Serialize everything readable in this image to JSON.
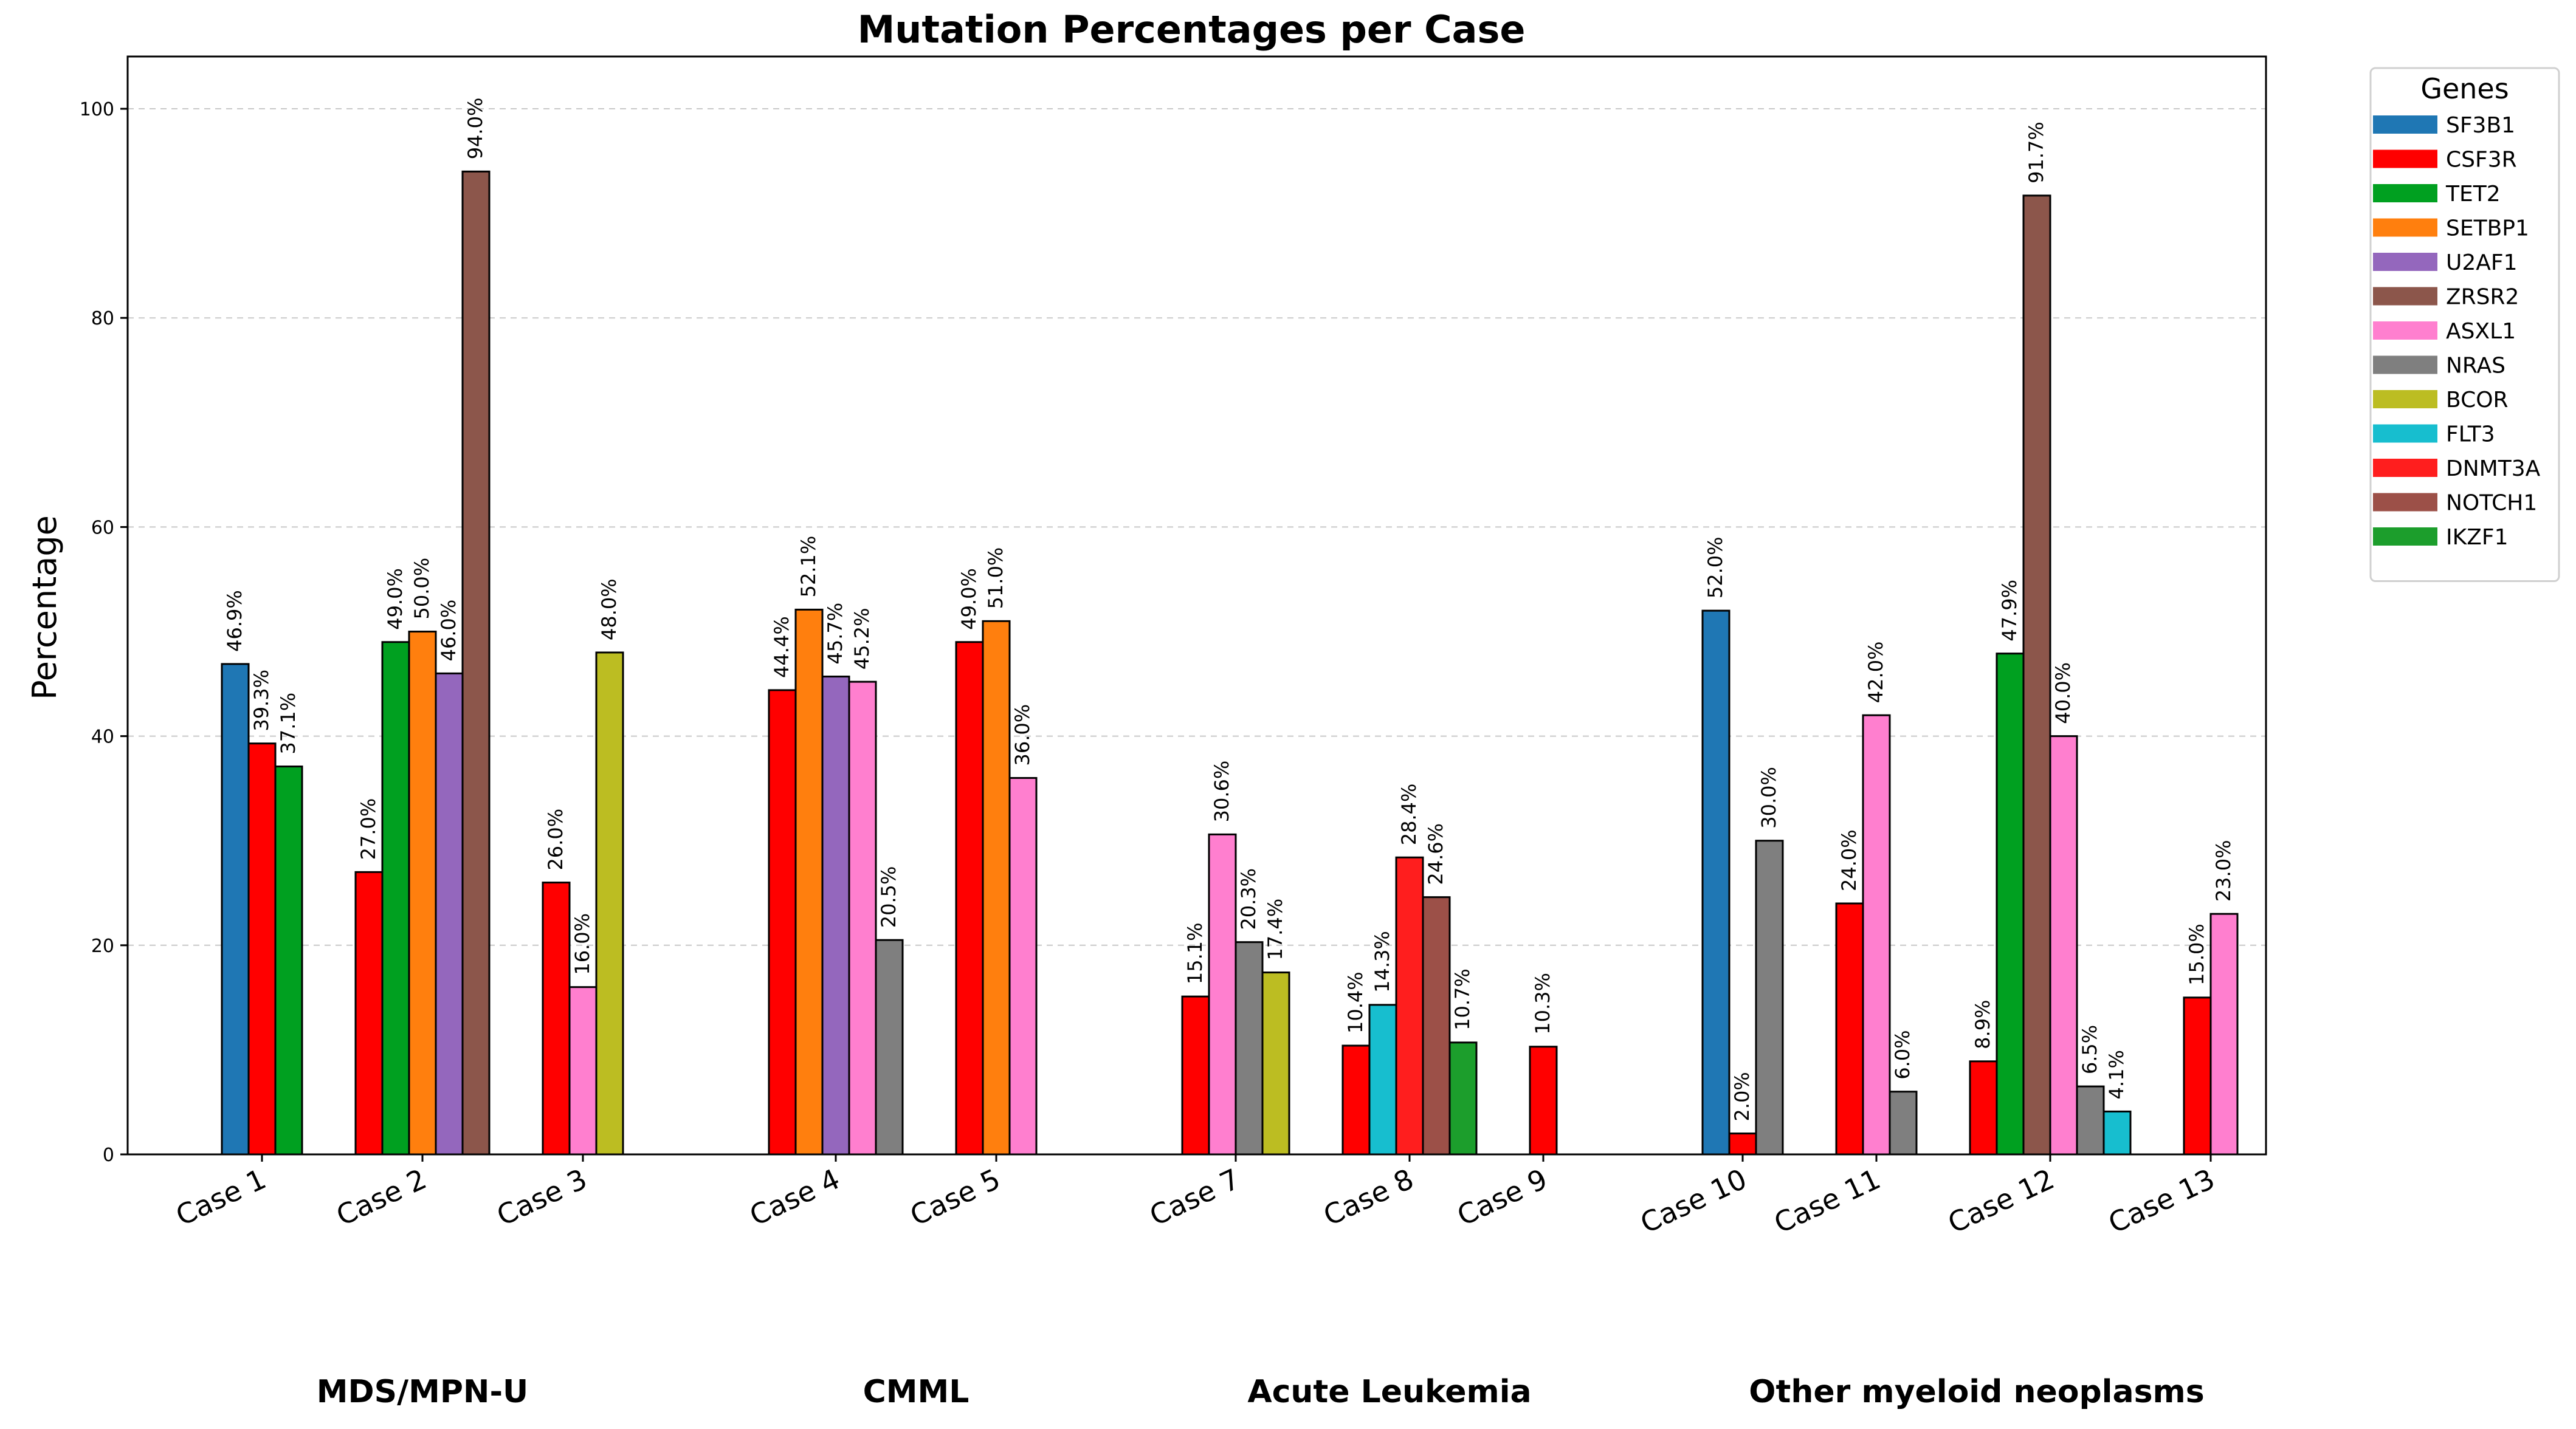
{
  "chart_data": {
    "type": "bar",
    "title": "Mutation Percentages per Case",
    "xlabel": "",
    "ylabel": "Percentage",
    "ylim": [
      0,
      105
    ],
    "yticks": [
      0,
      20,
      40,
      60,
      80,
      100
    ],
    "grid": "horizontal-dashed",
    "legend": {
      "title": "Genes",
      "placement": "outside-right",
      "entries": [
        {
          "name": "SF3B1",
          "color": "#1f77b4"
        },
        {
          "name": "CSF3R",
          "color": "#ff0000"
        },
        {
          "name": "TET2",
          "color": "#00a020"
        },
        {
          "name": "SETBP1",
          "color": "#ff7f0e"
        },
        {
          "name": "U2AF1",
          "color": "#9467bd"
        },
        {
          "name": "ZRSR2",
          "color": "#8c564b"
        },
        {
          "name": "ASXL1",
          "color": "#ff7fcf"
        },
        {
          "name": "NRAS",
          "color": "#7f7f7f"
        },
        {
          "name": "BCOR",
          "color": "#bcbd22"
        },
        {
          "name": "FLT3",
          "color": "#17becf"
        },
        {
          "name": "DNMT3A",
          "color": "#ff1e1e"
        },
        {
          "name": "NOTCH1",
          "color": "#9c5048"
        },
        {
          "name": "IKZF1",
          "color": "#1c9e2c"
        }
      ]
    },
    "groups": [
      {
        "name": "MDS/MPN-U",
        "cases": [
          {
            "label": "Case 1",
            "bars": [
              {
                "gene": "SF3B1",
                "value": 46.9,
                "label": "46.9%"
              },
              {
                "gene": "CSF3R",
                "value": 39.3,
                "label": "39.3%"
              },
              {
                "gene": "TET2",
                "value": 37.1,
                "label": "37.1%"
              }
            ]
          },
          {
            "label": "Case 2",
            "bars": [
              {
                "gene": "CSF3R",
                "value": 27.0,
                "label": "27.0%"
              },
              {
                "gene": "TET2",
                "value": 49.0,
                "label": "49.0%"
              },
              {
                "gene": "SETBP1",
                "value": 50.0,
                "label": "50.0%"
              },
              {
                "gene": "U2AF1",
                "value": 46.0,
                "label": "46.0%"
              },
              {
                "gene": "ZRSR2",
                "value": 94.0,
                "label": "94.0%"
              }
            ]
          },
          {
            "label": "Case 3",
            "bars": [
              {
                "gene": "CSF3R",
                "value": 26.0,
                "label": "26.0%"
              },
              {
                "gene": "ASXL1",
                "value": 16.0,
                "label": "16.0%"
              },
              {
                "gene": "BCOR",
                "value": 48.0,
                "label": "48.0%"
              }
            ]
          }
        ]
      },
      {
        "name": "CMML",
        "cases": [
          {
            "label": "Case 4",
            "bars": [
              {
                "gene": "CSF3R",
                "value": 44.4,
                "label": "44.4%"
              },
              {
                "gene": "SETBP1",
                "value": 52.1,
                "label": "52.1%"
              },
              {
                "gene": "U2AF1",
                "value": 45.7,
                "label": "45.7%"
              },
              {
                "gene": "ASXL1",
                "value": 45.2,
                "label": "45.2%"
              },
              {
                "gene": "NRAS",
                "value": 20.5,
                "label": "20.5%"
              }
            ]
          },
          {
            "label": "Case 5",
            "bars": [
              {
                "gene": "CSF3R",
                "value": 49.0,
                "label": "49.0%"
              },
              {
                "gene": "SETBP1",
                "value": 51.0,
                "label": "51.0%"
              },
              {
                "gene": "ASXL1",
                "value": 36.0,
                "label": "36.0%"
              }
            ]
          }
        ]
      },
      {
        "name": "Acute Leukemia",
        "cases": [
          {
            "label": "Case 7",
            "bars": [
              {
                "gene": "CSF3R",
                "value": 15.1,
                "label": "15.1%"
              },
              {
                "gene": "ASXL1",
                "value": 30.6,
                "label": "30.6%"
              },
              {
                "gene": "NRAS",
                "value": 20.3,
                "label": "20.3%"
              },
              {
                "gene": "BCOR",
                "value": 17.4,
                "label": "17.4%"
              }
            ]
          },
          {
            "label": "Case 8",
            "bars": [
              {
                "gene": "CSF3R",
                "value": 10.4,
                "label": "10.4%"
              },
              {
                "gene": "FLT3",
                "value": 14.3,
                "label": "14.3%"
              },
              {
                "gene": "DNMT3A",
                "value": 28.4,
                "label": "28.4%"
              },
              {
                "gene": "NOTCH1",
                "value": 24.6,
                "label": "24.6%"
              },
              {
                "gene": "IKZF1",
                "value": 10.7,
                "label": "10.7%"
              }
            ]
          },
          {
            "label": "Case 9",
            "bars": [
              {
                "gene": "CSF3R",
                "value": 10.3,
                "label": "10.3%"
              }
            ]
          }
        ]
      },
      {
        "name": "Other myeloid neoplasms",
        "cases": [
          {
            "label": "Case 10",
            "bars": [
              {
                "gene": "SF3B1",
                "value": 52.0,
                "label": "52.0%"
              },
              {
                "gene": "CSF3R",
                "value": 2.0,
                "label": "2.0%"
              },
              {
                "gene": "NRAS",
                "value": 30.0,
                "label": "30.0%"
              }
            ]
          },
          {
            "label": "Case 11",
            "bars": [
              {
                "gene": "CSF3R",
                "value": 24.0,
                "label": "24.0%"
              },
              {
                "gene": "ASXL1",
                "value": 42.0,
                "label": "42.0%"
              },
              {
                "gene": "NRAS",
                "value": 6.0,
                "label": "6.0%"
              }
            ]
          },
          {
            "label": "Case 12",
            "bars": [
              {
                "gene": "CSF3R",
                "value": 8.9,
                "label": "8.9%"
              },
              {
                "gene": "TET2",
                "value": 47.9,
                "label": "47.9%"
              },
              {
                "gene": "ZRSR2",
                "value": 91.7,
                "label": "91.7%"
              },
              {
                "gene": "ASXL1",
                "value": 40.0,
                "label": "40.0%"
              },
              {
                "gene": "NRAS",
                "value": 6.5,
                "label": "6.5%"
              },
              {
                "gene": "FLT3",
                "value": 4.1,
                "label": "4.1%"
              }
            ]
          },
          {
            "label": "Case 13",
            "bars": [
              {
                "gene": "CSF3R",
                "value": 15.0,
                "label": "15.0%"
              },
              {
                "gene": "ASXL1",
                "value": 23.0,
                "label": "23.0%"
              }
            ]
          }
        ]
      }
    ]
  }
}
